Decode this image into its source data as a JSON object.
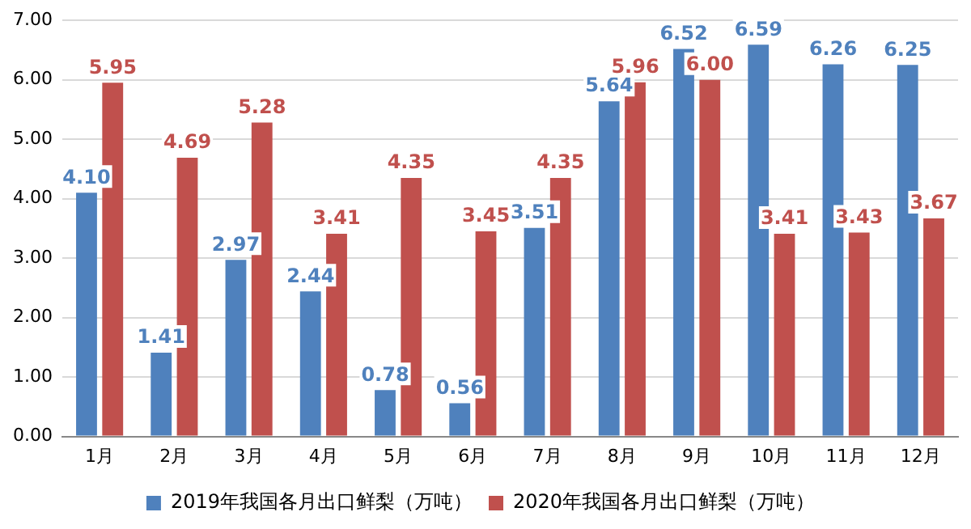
{
  "chart_data": {
    "type": "bar",
    "categories": [
      "1月",
      "2月",
      "3月",
      "4月",
      "5月",
      "6月",
      "7月",
      "8月",
      "9月",
      "10月",
      "11月",
      "12月"
    ],
    "series": [
      {
        "name": "2019年我国各月出口鲜梨（万吨）",
        "color": "#4f81bd",
        "values": [
          4.1,
          1.41,
          2.97,
          2.44,
          0.78,
          0.56,
          3.51,
          5.64,
          6.52,
          6.59,
          6.26,
          6.25
        ],
        "value_labels": [
          "4.10",
          "1.41",
          "2.97",
          "2.44",
          "0.78",
          "0.56",
          "3.51",
          "5.64",
          "6.52",
          "6.59",
          "6.26",
          "6.25"
        ]
      },
      {
        "name": "2020年我国各月出口鲜梨（万吨）",
        "color": "#c0504d",
        "values": [
          5.95,
          4.69,
          5.28,
          3.41,
          4.35,
          3.45,
          4.35,
          5.96,
          6.0,
          3.41,
          3.43,
          3.67
        ],
        "value_labels": [
          "5.95",
          "4.69",
          "5.28",
          "3.41",
          "4.35",
          "3.45",
          "4.35",
          "5.96",
          "6.00",
          "3.41",
          "3.43",
          "3.67"
        ]
      }
    ],
    "ylim": [
      0,
      7
    ],
    "yticks": [
      {
        "value": 0,
        "label": "0.00"
      },
      {
        "value": 1,
        "label": "1.00"
      },
      {
        "value": 2,
        "label": "2.00"
      },
      {
        "value": 3,
        "label": "3.00"
      },
      {
        "value": 4,
        "label": "4.00"
      },
      {
        "value": 5,
        "label": "5.00"
      },
      {
        "value": 6,
        "label": "6.00"
      },
      {
        "value": 7,
        "label": "7.00"
      }
    ],
    "grid": "y",
    "legend": "bottom"
  }
}
